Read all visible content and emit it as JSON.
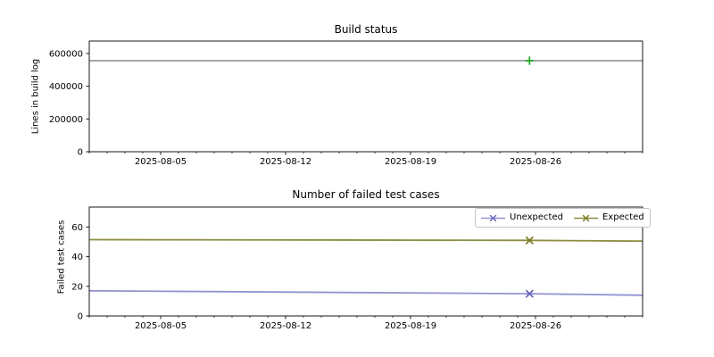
{
  "figure": {
    "background": "#ffffff",
    "text_color": "#000000",
    "spine_color": "#1a1a1a"
  },
  "chart_data": [
    {
      "type": "line",
      "title": "Build status",
      "ylabel": "Lines in build log",
      "xlabel": "",
      "grid": false,
      "xlim": [
        "2025-08-01",
        "2025-09-01"
      ],
      "ylim": [
        0,
        676000
      ],
      "xticks": [
        {
          "date": "2025-08-05",
          "label": "2025-08-05"
        },
        {
          "date": "2025-08-12",
          "label": "2025-08-12"
        },
        {
          "date": "2025-08-19",
          "label": "2025-08-19"
        },
        {
          "date": "2025-08-26",
          "label": "2025-08-26"
        }
      ],
      "minor_xtick_every_days": 1,
      "yticks": [
        {
          "value": 0,
          "label": "0"
        },
        {
          "value": 200000,
          "label": "200000"
        },
        {
          "value": 400000,
          "label": "400000"
        },
        {
          "value": 600000,
          "label": "600000"
        }
      ],
      "series": [
        {
          "name": "Lines in build log",
          "color": "#9a9a9a",
          "line_width": 1.8,
          "points": [
            {
              "x": "2025-08-01",
              "y": 556000
            },
            {
              "x": "2025-09-01",
              "y": 556000
            }
          ],
          "marker": {
            "glyph": "plus",
            "color": "#20a820",
            "x": "2025-08-25T16:00",
            "y": 556000,
            "size": 4
          }
        }
      ],
      "legend": null
    },
    {
      "type": "line",
      "title": "Number of failed test cases",
      "ylabel": "Failed test cases",
      "xlabel": "",
      "grid": false,
      "xlim": [
        "2025-08-01",
        "2025-09-01"
      ],
      "ylim": [
        0,
        73.5
      ],
      "xticks": [
        {
          "date": "2025-08-05",
          "label": "2025-08-05"
        },
        {
          "date": "2025-08-12",
          "label": "2025-08-12"
        },
        {
          "date": "2025-08-19",
          "label": "2025-08-19"
        },
        {
          "date": "2025-08-26",
          "label": "2025-08-26"
        }
      ],
      "minor_xtick_every_days": 1,
      "yticks": [
        {
          "value": 0,
          "label": "0"
        },
        {
          "value": 20,
          "label": "20"
        },
        {
          "value": 40,
          "label": "40"
        },
        {
          "value": 60,
          "label": "60"
        }
      ],
      "series": [
        {
          "name": "Unexpected",
          "color": "#9393d3",
          "marker_color": "#6565bd",
          "line_width": 1.8,
          "points": [
            {
              "x": "2025-08-01",
              "y": 17
            },
            {
              "x": "2025-08-25T16:00",
              "y": 15
            },
            {
              "x": "2025-09-01",
              "y": 14
            }
          ],
          "marker": {
            "glyph": "x",
            "color": "#6565bd",
            "x": "2025-08-25T16:00",
            "y": 15,
            "size": 3.5
          }
        },
        {
          "name": "Expected",
          "color": "#8e8e42",
          "marker_color": "#7c7c22",
          "line_width": 1.8,
          "points": [
            {
              "x": "2025-08-01",
              "y": 51.5
            },
            {
              "x": "2025-08-25T16:00",
              "y": 51
            },
            {
              "x": "2025-09-01",
              "y": 50.5
            }
          ],
          "marker": {
            "glyph": "x",
            "color": "#7c7c22",
            "x": "2025-08-25T16:00",
            "y": 51,
            "size": 3.5
          }
        }
      ],
      "legend": {
        "position": "upper-right",
        "entries": [
          "Unexpected",
          "Expected"
        ]
      }
    }
  ]
}
